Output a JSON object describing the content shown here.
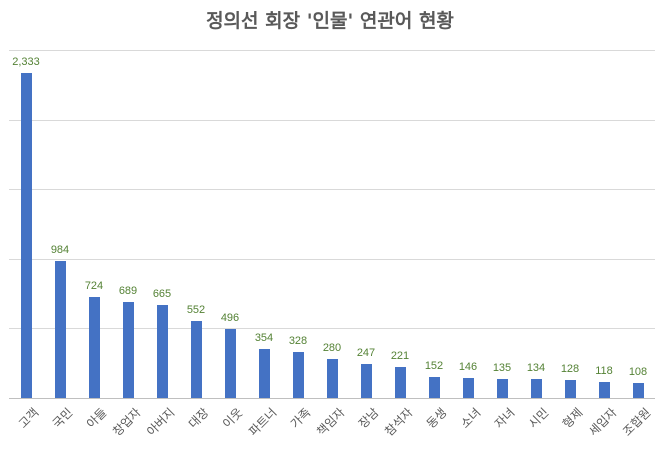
{
  "chart_data": {
    "type": "bar",
    "title": "정의선 회장 '인물' 연관어 현황",
    "xlabel": "",
    "ylabel": "",
    "ylim": [
      0,
      2500
    ],
    "grid": true,
    "y_axis_visible": false,
    "legend": null,
    "bar_color": "#4472c4",
    "label_color": "#548235",
    "categories": [
      "고객",
      "국민",
      "아들",
      "창업자",
      "아버지",
      "대장",
      "이웃",
      "파트너",
      "가족",
      "책임자",
      "장남",
      "참석자",
      "동생",
      "소녀",
      "자녀",
      "시민",
      "형제",
      "세입자",
      "조합원"
    ],
    "values": [
      2333,
      984,
      724,
      689,
      665,
      552,
      496,
      354,
      328,
      280,
      247,
      221,
      152,
      146,
      135,
      134,
      128,
      118,
      108
    ],
    "value_labels": [
      "2,333",
      "984",
      "724",
      "689",
      "665",
      "552",
      "496",
      "354",
      "328",
      "280",
      "247",
      "221",
      "152",
      "146",
      "135",
      "134",
      "128",
      "118",
      "108"
    ]
  }
}
